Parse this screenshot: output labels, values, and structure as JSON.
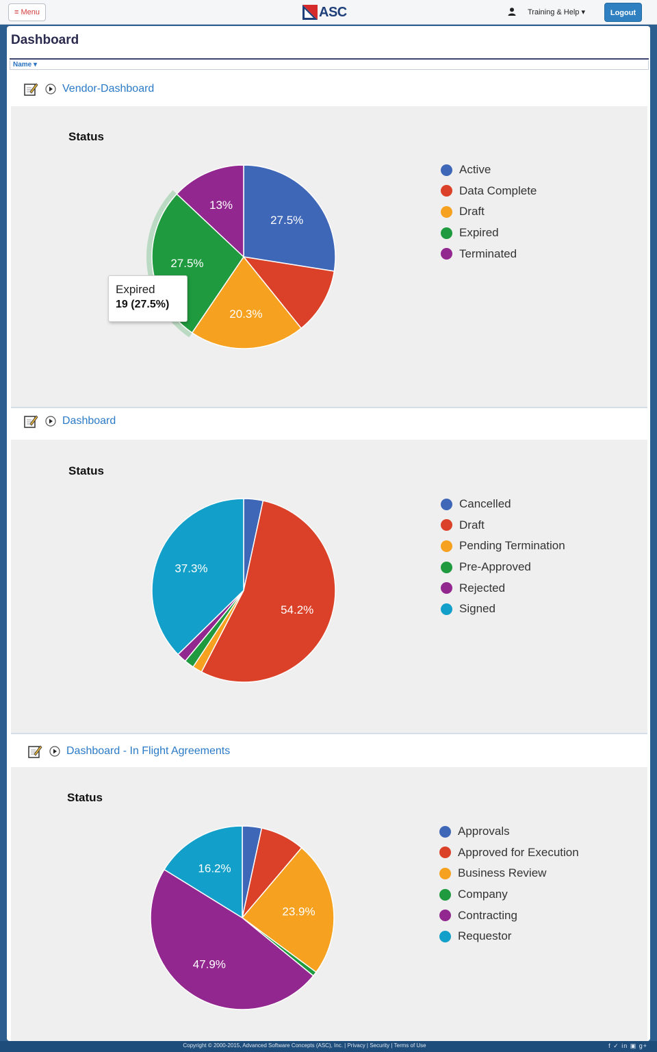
{
  "topbar": {
    "menu_label": "≡ Menu",
    "logo_text": "ASC",
    "help_label": "Training & Help ▾",
    "logout_label": "Logout"
  },
  "page": {
    "title": "Dashboard",
    "sort_label": "Name ▾"
  },
  "sections": [
    {
      "link": "Vendor-Dashboard",
      "chart_title": "Status",
      "legend": [
        "Active",
        "Data Complete",
        "Draft",
        "Expired",
        "Terminated"
      ],
      "tooltip": {
        "label": "Expired",
        "value": "19 (27.5%)"
      }
    },
    {
      "link": "Dashboard",
      "chart_title": "Status",
      "legend": [
        "Cancelled",
        "Draft",
        "Pending Termination",
        "Pre-Approved",
        "Rejected",
        "Signed"
      ]
    },
    {
      "link": "Dashboard - In Flight Agreements",
      "chart_title": "Status",
      "legend": [
        "Approvals",
        "Approved for Execution",
        "Business Review",
        "Company",
        "Contracting",
        "Requestor"
      ]
    }
  ],
  "colors": {
    "blue": "#3f67b8",
    "red": "#db4128",
    "orange": "#f6a11f",
    "green": "#1f9a3e",
    "purple": "#92278f",
    "teal": "#129fc9"
  },
  "chart_data": [
    {
      "type": "pie",
      "title": "Status",
      "categories": [
        "Active",
        "Data Complete",
        "Draft",
        "Expired",
        "Terminated"
      ],
      "values": [
        27.5,
        11.7,
        20.3,
        27.5,
        13
      ],
      "colors": [
        "#3f67b8",
        "#db4128",
        "#f6a11f",
        "#1f9a3e",
        "#92278f"
      ],
      "labels": [
        "27.5%",
        "",
        "20.3%",
        "27.5%",
        "13%"
      ],
      "highlight": "Expired"
    },
    {
      "type": "pie",
      "title": "Status",
      "categories": [
        "Cancelled",
        "Draft",
        "Pending Termination",
        "Pre-Approved",
        "Rejected",
        "Signed"
      ],
      "values": [
        3.4,
        54.2,
        1.7,
        1.7,
        1.7,
        37.3
      ],
      "colors": [
        "#3f67b8",
        "#db4128",
        "#f6a11f",
        "#1f9a3e",
        "#92278f",
        "#129fc9"
      ],
      "labels": [
        "",
        "54.2%",
        "",
        "",
        "",
        "37.3%"
      ]
    },
    {
      "type": "pie",
      "title": "Status",
      "categories": [
        "Approvals",
        "Approved for Execution",
        "Business Review",
        "Company",
        "Contracting",
        "Requestor"
      ],
      "values": [
        3.4,
        7.8,
        23.9,
        0.8,
        47.9,
        16.2
      ],
      "colors": [
        "#3f67b8",
        "#db4128",
        "#f6a11f",
        "#1f9a3e",
        "#92278f",
        "#129fc9"
      ],
      "labels": [
        "",
        "",
        "23.9%",
        "",
        "47.9%",
        "16.2%"
      ]
    }
  ],
  "footer": {
    "text": "Copyright © 2000-2015, Advanced Software Concepts (ASC), Inc. | Privacy | Security | Terms of Use",
    "social": "f  ✓  in  ▣  g+"
  }
}
